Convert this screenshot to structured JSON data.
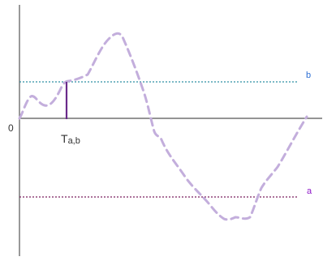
{
  "labels": {
    "origin": "0",
    "level_b": "b",
    "level_a": "a",
    "crossing_main": "T",
    "crossing_sub": "a,b"
  },
  "colors": {
    "axis": "#555555",
    "curve": "#c3aedc",
    "level_b_line": "#2e8fa3",
    "level_b_label": "#2d6fd4",
    "level_a_line": "#7b1e5e",
    "level_a_label": "#8e18c8",
    "marker": "#6a2a8a",
    "text": "#333333"
  },
  "line_styles": {
    "curve": "dashed",
    "level_b": "dotted",
    "level_a": "dotted",
    "marker": "solid"
  }
}
